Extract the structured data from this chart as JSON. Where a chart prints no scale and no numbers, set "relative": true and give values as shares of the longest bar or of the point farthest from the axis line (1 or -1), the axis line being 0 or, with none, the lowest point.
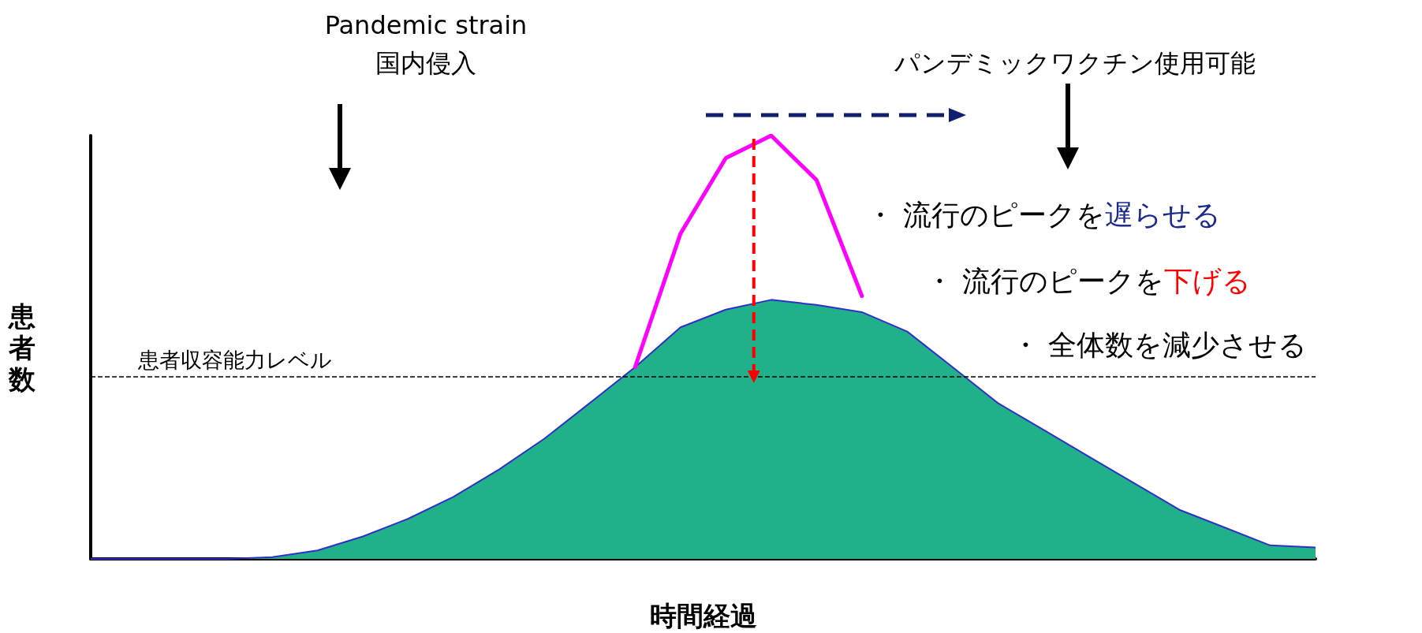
{
  "chart_data": {
    "type": "area",
    "relative": true,
    "xlabel": "時間経過",
    "ylabel": "患者数",
    "categories": [
      null,
      null,
      null,
      null,
      null,
      null,
      null,
      null,
      null,
      null,
      null,
      null,
      null,
      null,
      null,
      null,
      null,
      null,
      null,
      null,
      null,
      null,
      null,
      null,
      null,
      null,
      null,
      null
    ],
    "series": [
      {
        "color": "#20b08a",
        "values": [
          0,
          0,
          0,
          0,
          0.004,
          0.02,
          0.053,
          0.095,
          0.147,
          0.211,
          0.284,
          0.368,
          0.453,
          0.547,
          0.589,
          0.612,
          0.6,
          0.583,
          0.537,
          0.453,
          0.368,
          0.305,
          0.242,
          0.179,
          0.116,
          0.074,
          0.032,
          0.027
        ]
      },
      {
        "type": "line",
        "color": "#ff00ff",
        "values": [
          null,
          null,
          null,
          null,
          null,
          null,
          null,
          null,
          null,
          null,
          null,
          null,
          0.453,
          0.768,
          0.947,
          1,
          0.895,
          0.621,
          null,
          null,
          null,
          null,
          null,
          null,
          null,
          null,
          null,
          null
        ]
      }
    ],
    "ref_lines": [
      {
        "axis": "y",
        "value": 0.43,
        "label": "患者収容能力レベル",
        "color": "#000000",
        "line_style": "dashed"
      }
    ],
    "annotations": [
      "Pandemic strain",
      "国内侵入",
      "パンデミックワクチン使用可能",
      "・ 流行のピークを",
      "遅らせる",
      "・ 流行のピークを",
      "下げる",
      "・ 全体数を減少させる"
    ],
    "grid": false,
    "marker": "none"
  }
}
